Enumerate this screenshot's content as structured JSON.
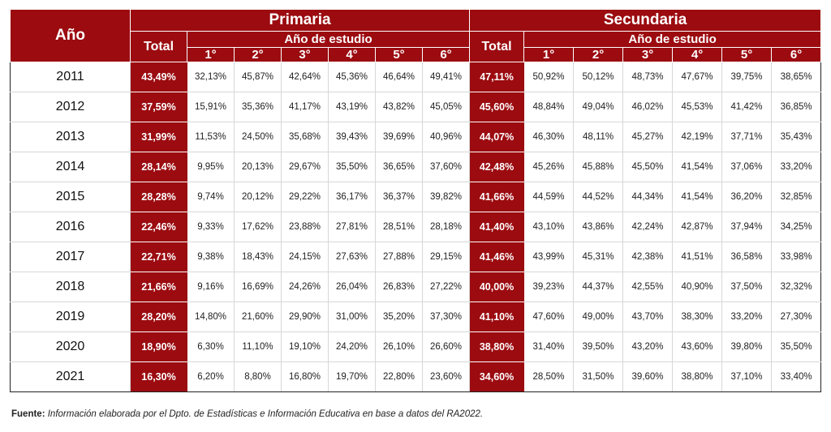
{
  "headers": {
    "year": "Año",
    "primaria": "Primaria",
    "secundaria": "Secundaria",
    "total": "Total",
    "anio_estudio": "Año de estudio",
    "grades": [
      "1°",
      "2°",
      "3°",
      "4°",
      "5°",
      "6°"
    ]
  },
  "rows": [
    {
      "year": "2011",
      "prim_total": "43,49%",
      "prim": [
        "32,13%",
        "45,87%",
        "42,64%",
        "45,36%",
        "46,64%",
        "49,41%"
      ],
      "sec_total": "47,11%",
      "sec": [
        "50,92%",
        "50,12%",
        "48,73%",
        "47,67%",
        "39,75%",
        "38,65%"
      ]
    },
    {
      "year": "2012",
      "prim_total": "37,59%",
      "prim": [
        "15,91%",
        "35,36%",
        "41,17%",
        "43,19%",
        "43,82%",
        "45,05%"
      ],
      "sec_total": "45,60%",
      "sec": [
        "48,84%",
        "49,04%",
        "46,02%",
        "45,53%",
        "41,42%",
        "36,85%"
      ]
    },
    {
      "year": "2013",
      "prim_total": "31,99%",
      "prim": [
        "11,53%",
        "24,50%",
        "35,68%",
        "39,43%",
        "39,69%",
        "40,96%"
      ],
      "sec_total": "44,07%",
      "sec": [
        "46,30%",
        "48,11%",
        "45,27%",
        "42,19%",
        "37,71%",
        "35,43%"
      ]
    },
    {
      "year": "2014",
      "prim_total": "28,14%",
      "prim": [
        "9,95%",
        "20,13%",
        "29,67%",
        "35,50%",
        "36,65%",
        "37,60%"
      ],
      "sec_total": "42,48%",
      "sec": [
        "45,26%",
        "45,88%",
        "45,50%",
        "41,54%",
        "37,06%",
        "33,20%"
      ]
    },
    {
      "year": "2015",
      "prim_total": "28,28%",
      "prim": [
        "9,74%",
        "20,12%",
        "29,22%",
        "36,17%",
        "36,37%",
        "39,82%"
      ],
      "sec_total": "41,66%",
      "sec": [
        "44,59%",
        "44,52%",
        "44,34%",
        "41,54%",
        "36,20%",
        "32,85%"
      ]
    },
    {
      "year": "2016",
      "prim_total": "22,46%",
      "prim": [
        "9,33%",
        "17,62%",
        "23,88%",
        "27,81%",
        "28,51%",
        "28,18%"
      ],
      "sec_total": "41,40%",
      "sec": [
        "43,10%",
        "43,86%",
        "42,24%",
        "42,87%",
        "37,94%",
        "34,25%"
      ]
    },
    {
      "year": "2017",
      "prim_total": "22,71%",
      "prim": [
        "9,38%",
        "18,43%",
        "24,15%",
        "27,63%",
        "27,88%",
        "29,15%"
      ],
      "sec_total": "41,46%",
      "sec": [
        "43,99%",
        "45,31%",
        "42,38%",
        "41,51%",
        "36,58%",
        "33,98%"
      ]
    },
    {
      "year": "2018",
      "prim_total": "21,66%",
      "prim": [
        "9,16%",
        "16,69%",
        "24,26%",
        "26,04%",
        "26,83%",
        "27,22%"
      ],
      "sec_total": "40,00%",
      "sec": [
        "39,23%",
        "44,37%",
        "42,55%",
        "40,90%",
        "37,50%",
        "32,32%"
      ]
    },
    {
      "year": "2019",
      "prim_total": "28,20%",
      "prim": [
        "14,80%",
        "21,60%",
        "29,90%",
        "31,00%",
        "35,20%",
        "37,30%"
      ],
      "sec_total": "41,10%",
      "sec": [
        "47,60%",
        "49,00%",
        "43,70%",
        "38,30%",
        "33,20%",
        "27,30%"
      ]
    },
    {
      "year": "2020",
      "prim_total": "18,90%",
      "prim": [
        "6,30%",
        "11,10%",
        "19,10%",
        "24,20%",
        "26,10%",
        "26,60%"
      ],
      "sec_total": "38,80%",
      "sec": [
        "31,40%",
        "39,50%",
        "43,20%",
        "43,60%",
        "39,80%",
        "35,50%"
      ]
    },
    {
      "year": "2021",
      "prim_total": "16,30%",
      "prim": [
        "6,20%",
        "8,80%",
        "16,80%",
        "19,70%",
        "22,80%",
        "23,60%"
      ],
      "sec_total": "34,60%",
      "sec": [
        "28,50%",
        "31,50%",
        "39,60%",
        "38,80%",
        "37,10%",
        "33,40%"
      ]
    }
  ],
  "footer": {
    "label": "Fuente:",
    "text": "Información elaborada por el Dpto. de Estadísticas e Información Educativa en base a datos del RA2022."
  }
}
